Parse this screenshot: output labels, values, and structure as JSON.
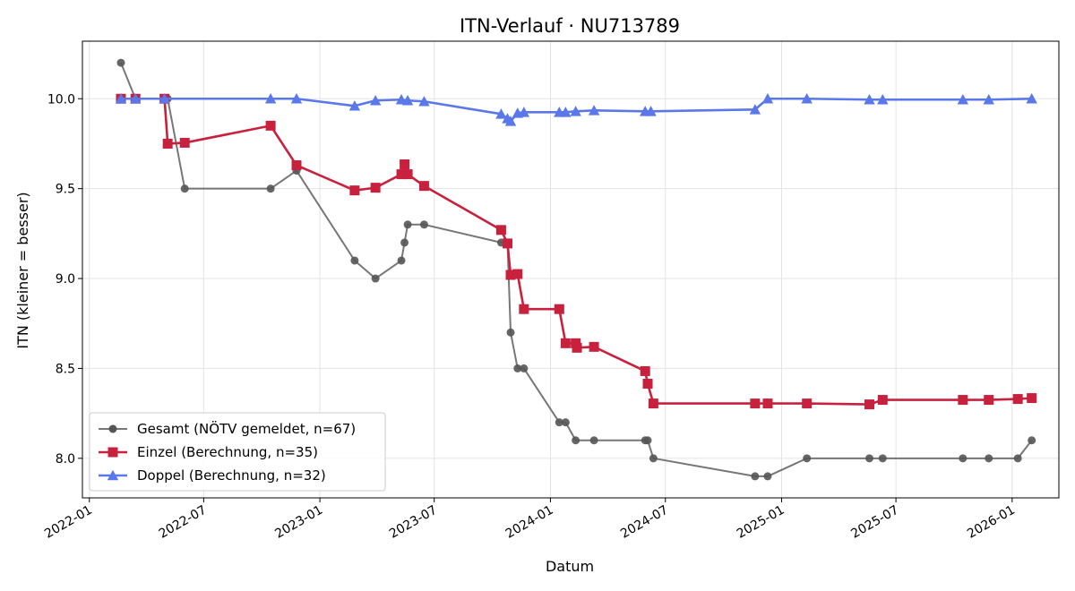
{
  "chart_data": {
    "type": "line",
    "title": "ITN-Verlauf · NU713789",
    "xlabel": "Datum",
    "ylabel": "ITN  (kleiner = besser)",
    "x_type": "date",
    "xlim": [
      "2021-12-21",
      "2026-03-16"
    ],
    "ylim": [
      7.78,
      10.32
    ],
    "x_ticks": [
      "2022-01-01",
      "2022-07-01",
      "2023-01-01",
      "2023-07-01",
      "2024-01-01",
      "2024-07-01",
      "2025-01-01",
      "2025-07-01",
      "2026-01-01"
    ],
    "x_tick_labels": [
      "2022-01",
      "2022-07",
      "2023-01",
      "2023-07",
      "2024-01",
      "2024-07",
      "2025-01",
      "2025-07",
      "2026-01"
    ],
    "y_ticks": [
      8.0,
      8.5,
      9.0,
      9.5,
      10.0
    ],
    "y_tick_labels": [
      "8.0",
      "8.5",
      "9.0",
      "9.5",
      "10.0"
    ],
    "grid": true,
    "legend_position": "lower-left",
    "series": [
      {
        "name": "Gesamt (NÖTV gemeldet, n=67)",
        "color": "#555555",
        "marker": "circle",
        "points": [
          [
            "2022-02-20",
            10.2
          ],
          [
            "2022-03-15",
            10.0
          ],
          [
            "2022-05-01",
            10.0
          ],
          [
            "2022-05-05",
            10.0
          ],
          [
            "2022-06-01",
            9.5
          ],
          [
            "2022-10-15",
            9.5
          ],
          [
            "2022-11-25",
            9.6
          ],
          [
            "2023-02-25",
            9.1
          ],
          [
            "2023-03-30",
            9.0
          ],
          [
            "2023-05-10",
            9.1
          ],
          [
            "2023-05-15",
            9.2
          ],
          [
            "2023-05-20",
            9.3
          ],
          [
            "2023-06-15",
            9.3
          ],
          [
            "2023-10-15",
            9.2
          ],
          [
            "2023-10-25",
            9.2
          ],
          [
            "2023-10-30",
            8.7
          ],
          [
            "2023-11-10",
            8.5
          ],
          [
            "2023-11-20",
            8.5
          ],
          [
            "2024-01-15",
            8.2
          ],
          [
            "2024-01-25",
            8.2
          ],
          [
            "2024-02-10",
            8.1
          ],
          [
            "2024-03-10",
            8.1
          ],
          [
            "2024-05-30",
            8.1
          ],
          [
            "2024-06-03",
            8.1
          ],
          [
            "2024-06-12",
            8.0
          ],
          [
            "2024-11-20",
            7.9
          ],
          [
            "2024-12-10",
            7.9
          ],
          [
            "2025-02-10",
            8.0
          ],
          [
            "2025-05-20",
            8.0
          ],
          [
            "2025-06-10",
            8.0
          ],
          [
            "2025-10-15",
            8.0
          ],
          [
            "2025-11-25",
            8.0
          ],
          [
            "2026-01-10",
            8.0
          ],
          [
            "2026-02-01",
            8.1
          ]
        ]
      },
      {
        "name": "Einzel (Berechnung, n=35)",
        "color": "#c8213d",
        "marker": "square",
        "points": [
          [
            "2022-02-20",
            10.0
          ],
          [
            "2022-03-15",
            10.0
          ],
          [
            "2022-04-30",
            10.0
          ],
          [
            "2022-05-05",
            9.75
          ],
          [
            "2022-06-01",
            9.755
          ],
          [
            "2022-10-15",
            9.85
          ],
          [
            "2022-11-25",
            9.63
          ],
          [
            "2023-02-25",
            9.49
          ],
          [
            "2023-03-30",
            9.505
          ],
          [
            "2023-05-10",
            9.58
          ],
          [
            "2023-05-15",
            9.635
          ],
          [
            "2023-05-20",
            9.58
          ],
          [
            "2023-06-15",
            9.515
          ],
          [
            "2023-10-15",
            9.27
          ],
          [
            "2023-10-25",
            9.195
          ],
          [
            "2023-10-30",
            9.02
          ],
          [
            "2023-11-10",
            9.025
          ],
          [
            "2023-11-20",
            8.83
          ],
          [
            "2024-01-15",
            8.83
          ],
          [
            "2024-01-25",
            8.64
          ],
          [
            "2024-02-10",
            8.64
          ],
          [
            "2024-02-12",
            8.615
          ],
          [
            "2024-03-10",
            8.62
          ],
          [
            "2024-05-30",
            8.485
          ],
          [
            "2024-06-03",
            8.415
          ],
          [
            "2024-06-12",
            8.305
          ],
          [
            "2024-11-20",
            8.305
          ],
          [
            "2024-12-10",
            8.305
          ],
          [
            "2025-02-10",
            8.305
          ],
          [
            "2025-05-20",
            8.3
          ],
          [
            "2025-06-10",
            8.325
          ],
          [
            "2025-10-15",
            8.325
          ],
          [
            "2025-11-25",
            8.325
          ],
          [
            "2026-01-10",
            8.33
          ],
          [
            "2026-02-01",
            8.335
          ]
        ]
      },
      {
        "name": "Doppel (Berechnung, n=32)",
        "color": "#5a78ea",
        "marker": "triangle",
        "points": [
          [
            "2022-02-20",
            10.0
          ],
          [
            "2022-03-15",
            10.0
          ],
          [
            "2022-04-30",
            10.0
          ],
          [
            "2022-10-15",
            10.0
          ],
          [
            "2022-11-25",
            10.0
          ],
          [
            "2023-02-25",
            9.96
          ],
          [
            "2023-03-30",
            9.99
          ],
          [
            "2023-05-10",
            9.995
          ],
          [
            "2023-05-20",
            9.99
          ],
          [
            "2023-06-15",
            9.985
          ],
          [
            "2023-10-15",
            9.915
          ],
          [
            "2023-10-25",
            9.89
          ],
          [
            "2023-10-30",
            9.875
          ],
          [
            "2023-11-10",
            9.92
          ],
          [
            "2023-11-20",
            9.925
          ],
          [
            "2024-01-15",
            9.925
          ],
          [
            "2024-01-25",
            9.925
          ],
          [
            "2024-02-10",
            9.93
          ],
          [
            "2024-03-10",
            9.935
          ],
          [
            "2024-05-30",
            9.93
          ],
          [
            "2024-06-08",
            9.93
          ],
          [
            "2024-11-20",
            9.94
          ],
          [
            "2024-12-10",
            10.0
          ],
          [
            "2025-02-10",
            10.0
          ],
          [
            "2025-05-20",
            9.995
          ],
          [
            "2025-06-10",
            9.995
          ],
          [
            "2025-10-15",
            9.995
          ],
          [
            "2025-11-25",
            9.995
          ],
          [
            "2026-02-01",
            10.0
          ]
        ]
      }
    ]
  }
}
